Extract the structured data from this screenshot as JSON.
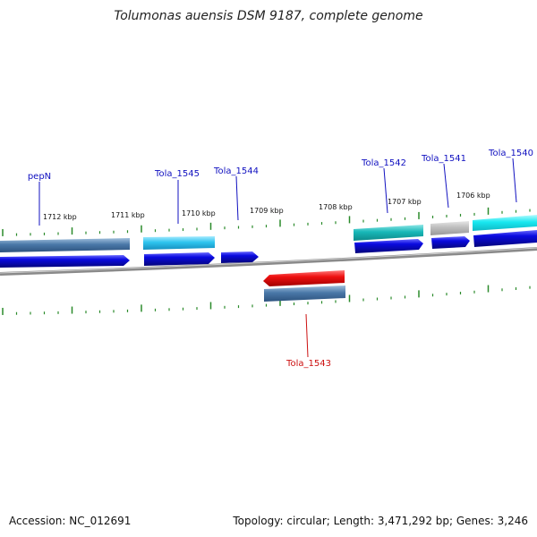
{
  "title": "Tolumonas auensis DSM 9187, complete genome",
  "footer": {
    "accession": "Accession: NC_012691",
    "summary": "Topology: circular; Length: 3,471,292 bp; Genes: 3,246"
  },
  "colors": {
    "label_forward": "#1010c0",
    "label_reverse": "#cc1010",
    "tick": "#2a8a2a",
    "backbone": "#888888",
    "cds_blue": "#0a0ae0",
    "cds_red": "#ee1010",
    "gene_steel": "#4a78a8",
    "gene_sky": "#2ec4ee",
    "gene_teal": "#18b8b8",
    "gene_grey": "#b8b8b8",
    "gene_cyan": "#18e8f0"
  },
  "scale_labels": [
    "1712 kbp",
    "1711 kbp",
    "1710 kbp",
    "1709 kbp",
    "1708 kbp",
    "1707 kbp",
    "1706 kbp"
  ],
  "gene_labels": [
    {
      "name": "pepN",
      "strand": "forward"
    },
    {
      "name": "Tola_1545",
      "strand": "forward"
    },
    {
      "name": "Tola_1544",
      "strand": "forward"
    },
    {
      "name": "Tola_1543",
      "strand": "reverse"
    },
    {
      "name": "Tola_1542",
      "strand": "forward"
    },
    {
      "name": "Tola_1541",
      "strand": "forward"
    },
    {
      "name": "Tola_1540",
      "strand": "forward"
    }
  ]
}
